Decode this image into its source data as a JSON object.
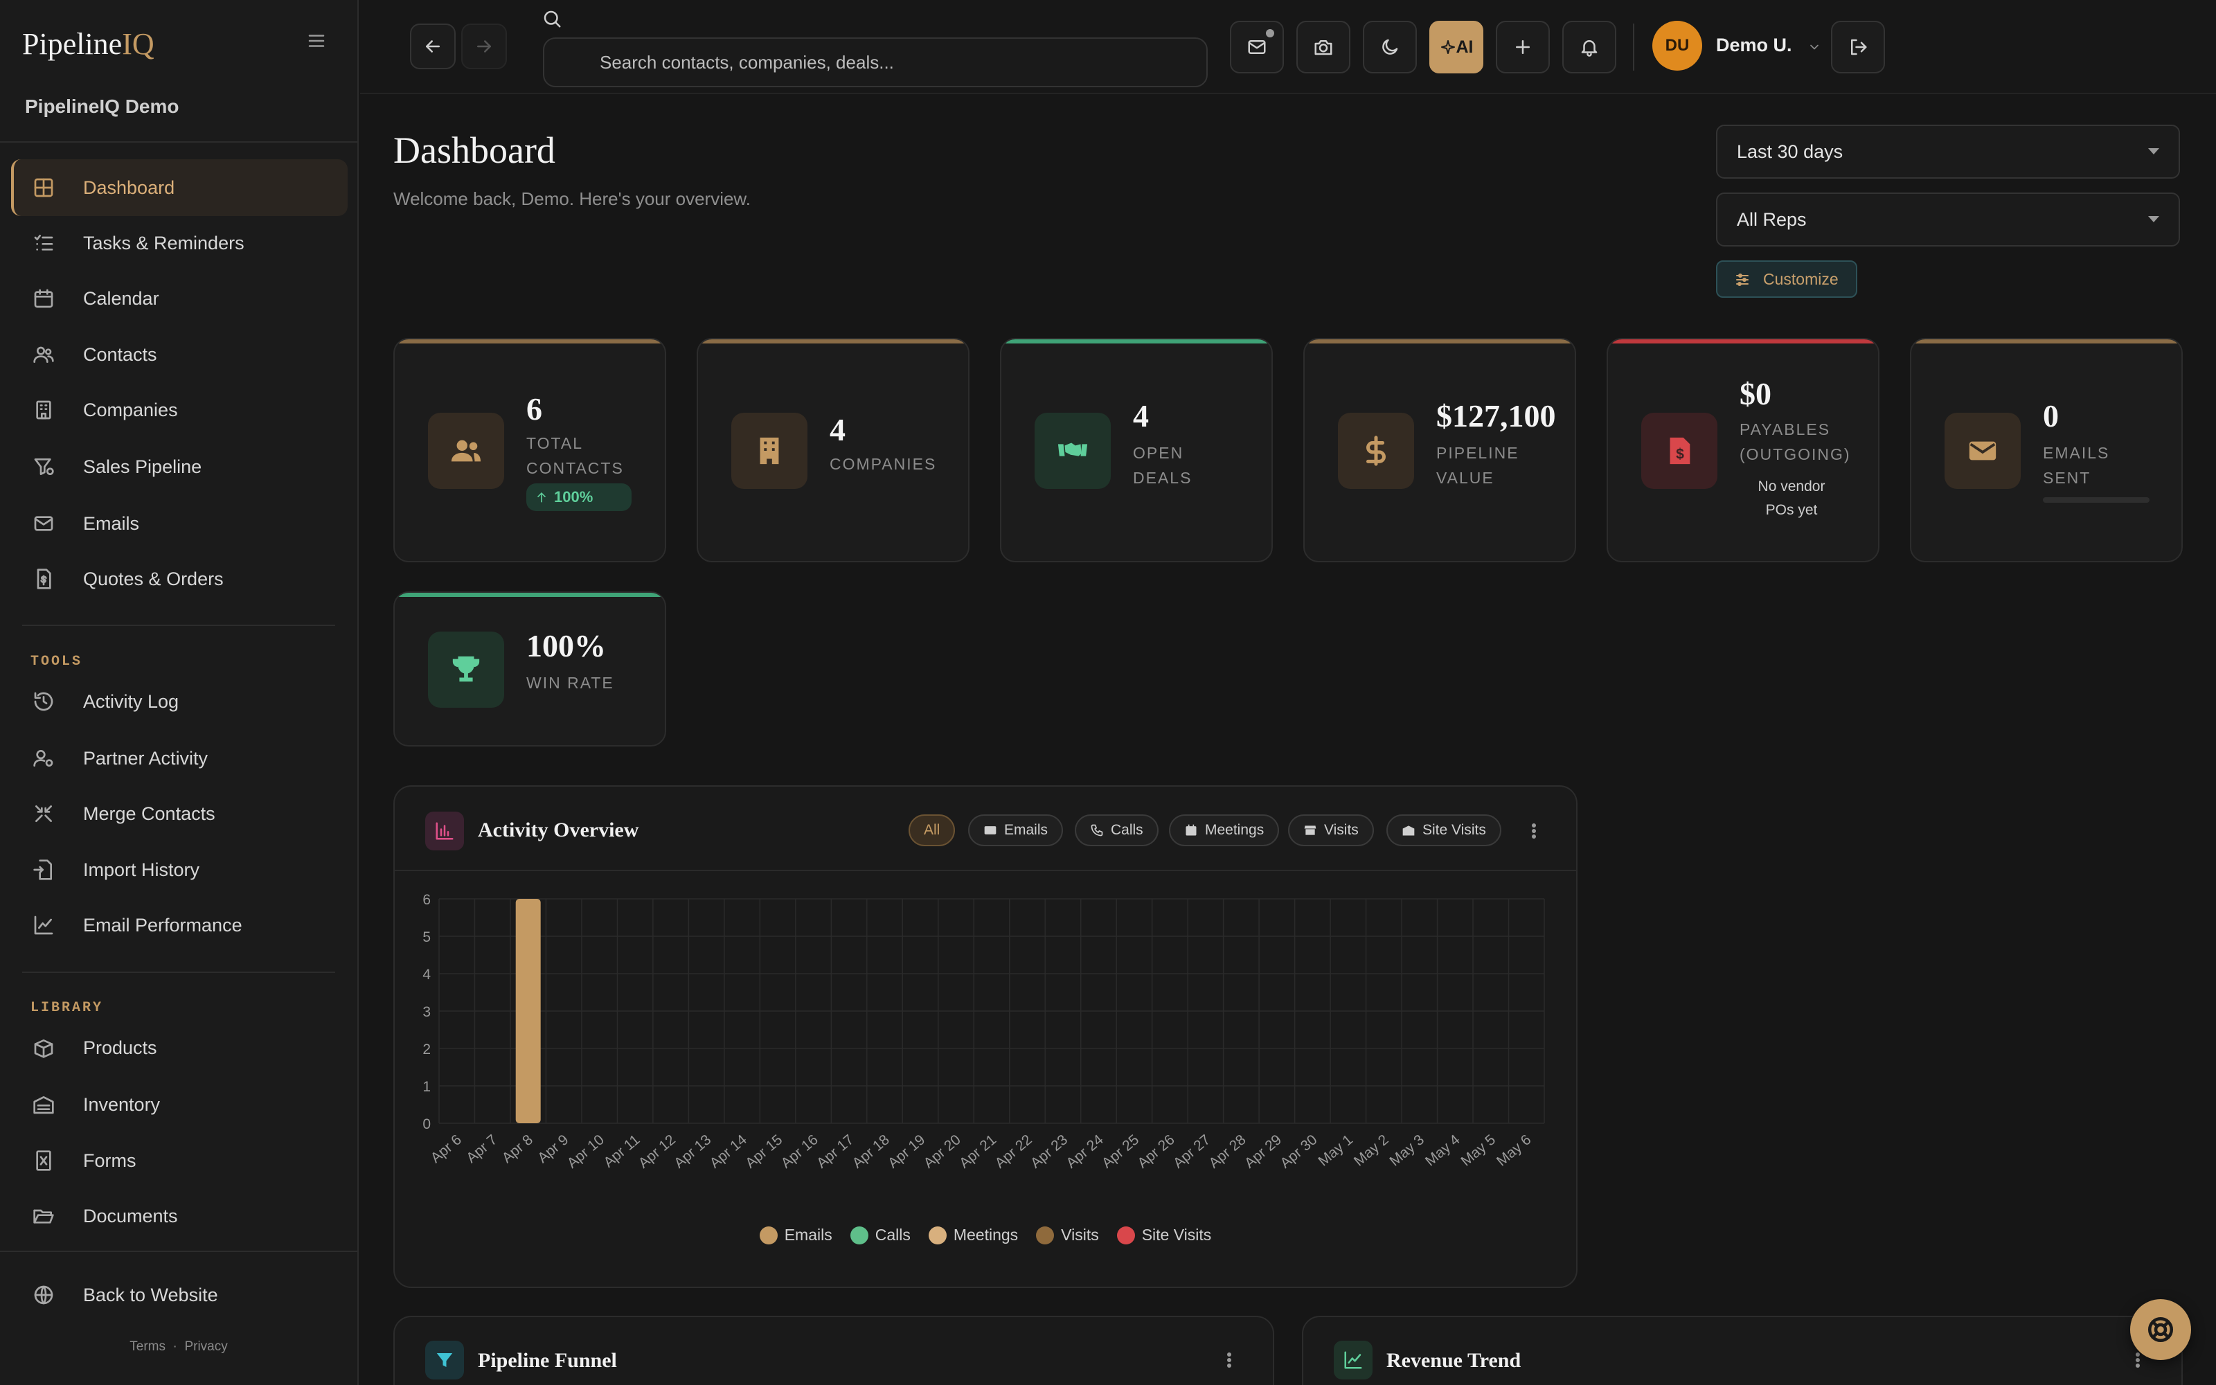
{
  "brand": {
    "name": "Pipeline",
    "accent": "IQ"
  },
  "org_name": "PipelineIQ Demo",
  "nav": {
    "main": [
      "Dashboard",
      "Tasks & Reminders",
      "Calendar",
      "Contacts",
      "Companies",
      "Sales Pipeline",
      "Emails",
      "Quotes & Orders"
    ],
    "tools_label": "TOOLS",
    "tools": [
      "Activity Log",
      "Partner Activity",
      "Merge Contacts",
      "Import History",
      "Email Performance"
    ],
    "library_label": "LIBRARY",
    "library": [
      "Products",
      "Inventory",
      "Forms",
      "Documents"
    ],
    "back": "Back to Website"
  },
  "footer": {
    "terms": "Terms",
    "sep": "·",
    "privacy": "Privacy"
  },
  "topbar": {
    "search_placeholder": "Search contacts, companies, deals...",
    "ai_label": "AI",
    "avatar_initials": "DU",
    "user_name": "Demo U."
  },
  "page": {
    "title": "Dashboard",
    "subtitle": "Welcome back, Demo. Here's your overview."
  },
  "filters": {
    "range": "Last 30 days",
    "reps": "All Reps",
    "customize": "Customize"
  },
  "kpis": [
    {
      "value": "6",
      "label1": "TOTAL",
      "label2": "CONTACTS",
      "badge": "100%"
    },
    {
      "value": "4",
      "label1": "COMPANIES"
    },
    {
      "value": "4",
      "label1": "OPEN",
      "label2": "DEALS"
    },
    {
      "value": "$127,100",
      "label1": "PIPELINE",
      "label2": "VALUE"
    },
    {
      "value": "$0",
      "label1": "PAYABLES",
      "label2": "(OUTGOING)",
      "note1": "No vendor",
      "note2": "POs yet"
    },
    {
      "value": "0",
      "label1": "EMAILS",
      "label2": "SENT",
      "progress": 0
    },
    {
      "value": "100%",
      "label1": "WIN RATE"
    }
  ],
  "colors": {
    "accent": "#c49a63",
    "green": "#5fcf9b",
    "red": "#d9474b",
    "bg": "#161616"
  },
  "activity": {
    "title": "Activity Overview",
    "filters": [
      "All",
      "Emails",
      "Calls",
      "Meetings",
      "Visits",
      "Site Visits"
    ],
    "active_filter": "All"
  },
  "chart_data": {
    "type": "bar",
    "title": "Activity Overview",
    "categories": [
      "Apr 6",
      "Apr 7",
      "Apr 8",
      "Apr 9",
      "Apr 10",
      "Apr 11",
      "Apr 12",
      "Apr 13",
      "Apr 14",
      "Apr 15",
      "Apr 16",
      "Apr 17",
      "Apr 18",
      "Apr 19",
      "Apr 20",
      "Apr 21",
      "Apr 22",
      "Apr 23",
      "Apr 24",
      "Apr 25",
      "Apr 26",
      "Apr 27",
      "Apr 28",
      "Apr 29",
      "Apr 30",
      "May 1",
      "May 2",
      "May 3",
      "May 4",
      "May 5",
      "May 6"
    ],
    "series": [
      {
        "name": "Emails",
        "color": "#c49a63",
        "values": [
          0,
          0,
          6,
          0,
          0,
          0,
          0,
          0,
          0,
          0,
          0,
          0,
          0,
          0,
          0,
          0,
          0,
          0,
          0,
          0,
          0,
          0,
          0,
          0,
          0,
          0,
          0,
          0,
          0,
          0,
          0
        ]
      },
      {
        "name": "Calls",
        "color": "#5fbf8a",
        "values": [
          0,
          0,
          0,
          0,
          0,
          0,
          0,
          0,
          0,
          0,
          0,
          0,
          0,
          0,
          0,
          0,
          0,
          0,
          0,
          0,
          0,
          0,
          0,
          0,
          0,
          0,
          0,
          0,
          0,
          0,
          0
        ]
      },
      {
        "name": "Meetings",
        "color": "#d8b07e",
        "values": [
          0,
          0,
          0,
          0,
          0,
          0,
          0,
          0,
          0,
          0,
          0,
          0,
          0,
          0,
          0,
          0,
          0,
          0,
          0,
          0,
          0,
          0,
          0,
          0,
          0,
          0,
          0,
          0,
          0,
          0,
          0
        ]
      },
      {
        "name": "Visits",
        "color": "#8f6a3c",
        "values": [
          0,
          0,
          0,
          0,
          0,
          0,
          0,
          0,
          0,
          0,
          0,
          0,
          0,
          0,
          0,
          0,
          0,
          0,
          0,
          0,
          0,
          0,
          0,
          0,
          0,
          0,
          0,
          0,
          0,
          0,
          0
        ]
      },
      {
        "name": "Site Visits",
        "color": "#d9474b",
        "values": [
          0,
          0,
          0,
          0,
          0,
          0,
          0,
          0,
          0,
          0,
          0,
          0,
          0,
          0,
          0,
          0,
          0,
          0,
          0,
          0,
          0,
          0,
          0,
          0,
          0,
          0,
          0,
          0,
          0,
          0,
          0
        ]
      }
    ],
    "yticks": [
      0,
      1,
      2,
      3,
      4,
      5,
      6
    ],
    "ylim": [
      0,
      6
    ],
    "stacked": true,
    "grid": true,
    "legend": "bottom"
  },
  "panels": {
    "funnel": "Pipeline Funnel",
    "revenue": "Revenue Trend"
  }
}
